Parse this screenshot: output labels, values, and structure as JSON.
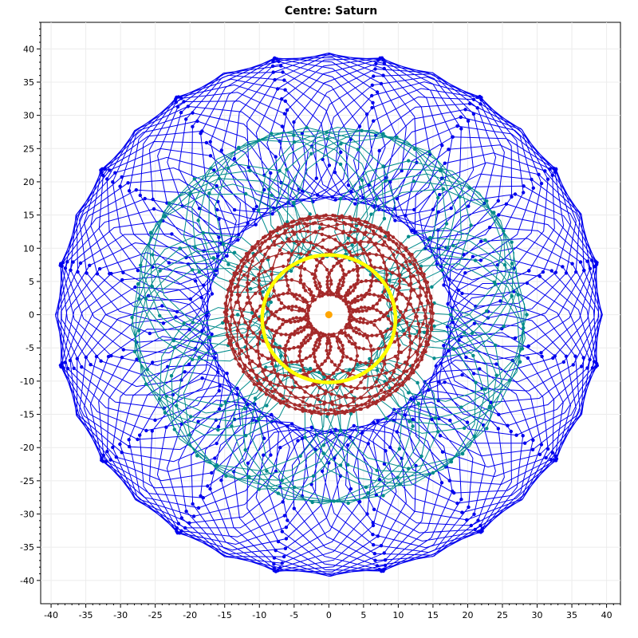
{
  "chart_data": {
    "type": "scatter",
    "title": "Centre: Saturn",
    "xlabel": "",
    "ylabel": "",
    "xlim": [
      -41.5,
      42
    ],
    "ylim": [
      -43.5,
      44
    ],
    "xticks": [
      -40,
      -35,
      -30,
      -25,
      -20,
      -15,
      -10,
      -5,
      0,
      5,
      10,
      15,
      20,
      25,
      30,
      35,
      40
    ],
    "yticks": [
      40,
      35,
      30,
      25,
      20,
      15,
      10,
      5,
      0,
      -5,
      -10,
      -15,
      -20,
      -25,
      -30,
      -35,
      -40
    ],
    "grid": true,
    "centre": {
      "x": 0,
      "y": 0,
      "color": "#FFA500"
    },
    "series": [
      {
        "color": "#0000EE",
        "kind": "epicycle",
        "center_radius": 28.25,
        "loop_radius": 11.15,
        "loops": 12,
        "offset_angle_deg": 15,
        "tracks": 9,
        "points_per_track": 120,
        "marker": true
      },
      {
        "color": "#008B8B",
        "kind": "epicycle",
        "center_radius": 18.5,
        "loop_radius": 10.0,
        "loops": 10,
        "offset_angle_deg": 0,
        "tracks": 5,
        "points_per_track": 110,
        "marker": true
      },
      {
        "color": "#A52A2A",
        "kind": "epicycle",
        "center_radius": 9.0,
        "loop_radius": 6.0,
        "loops": 3,
        "offset_angle_deg": 30,
        "tracks": 24,
        "points_per_track": 90,
        "marker": true
      },
      {
        "color": "#FFFF00",
        "kind": "circle",
        "radius": 9.6,
        "center": [
          0,
          -0.6
        ],
        "marker": false
      }
    ]
  }
}
